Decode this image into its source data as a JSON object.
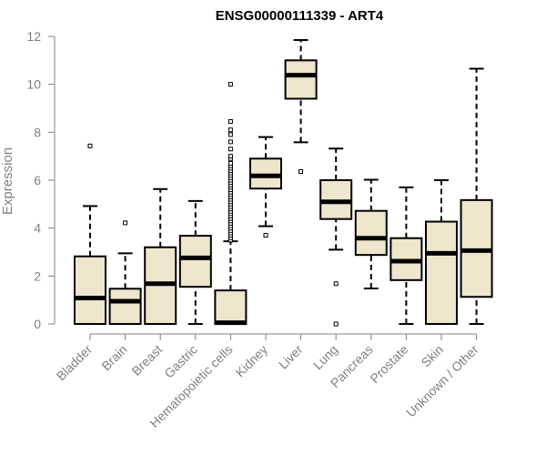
{
  "chart_data": {
    "type": "boxplot",
    "title": "ENSG00000111339 - ART4",
    "xlabel": "",
    "ylabel": "Expression",
    "ylim": [
      0,
      12
    ],
    "yticks": [
      0,
      2,
      4,
      6,
      8,
      10,
      12
    ],
    "grid": false,
    "legend": "none",
    "box_fill": "#ede6cc",
    "categories": [
      "Bladder",
      "Brain",
      "Breast",
      "Gastric",
      "Hematopoietic cells",
      "Kidney",
      "Liver",
      "Lung",
      "Pancreas",
      "Prostate",
      "Skin",
      "Unknown / Other"
    ],
    "boxes": [
      {
        "min": 0,
        "q1": 0,
        "median": 1.08,
        "q3": 2.82,
        "max": 4.92,
        "outliers": [
          7.43
        ]
      },
      {
        "min": 0,
        "q1": 0,
        "median": 0.95,
        "q3": 1.47,
        "max": 2.95,
        "outliers": [
          4.22
        ]
      },
      {
        "min": 0,
        "q1": 0,
        "median": 1.68,
        "q3": 3.2,
        "max": 5.63,
        "outliers": []
      },
      {
        "min": 0,
        "q1": 1.55,
        "median": 2.76,
        "q3": 3.68,
        "max": 5.13,
        "outliers": []
      },
      {
        "min": 0,
        "q1": 0,
        "median": 0.05,
        "q3": 1.4,
        "max": 3.45,
        "outliers": [
          3.5,
          3.6,
          3.7,
          3.8,
          3.9,
          4.0,
          4.1,
          4.2,
          4.3,
          4.4,
          4.5,
          4.6,
          4.7,
          4.8,
          4.9,
          5.0,
          5.1,
          5.2,
          5.3,
          5.4,
          5.5,
          5.6,
          5.7,
          5.8,
          5.9,
          6.0,
          6.1,
          6.2,
          6.3,
          6.4,
          6.5,
          6.6,
          6.7,
          6.9,
          7.0,
          7.3,
          7.6,
          7.9,
          8.1,
          8.45,
          10.0
        ]
      },
      {
        "min": 4.08,
        "q1": 5.65,
        "median": 6.18,
        "q3": 6.9,
        "max": 7.8,
        "outliers": [
          3.7
        ]
      },
      {
        "min": 7.58,
        "q1": 9.4,
        "median": 10.38,
        "q3": 11.0,
        "max": 11.85,
        "outliers": [
          6.36
        ]
      },
      {
        "min": 3.1,
        "q1": 4.38,
        "median": 5.1,
        "q3": 6.0,
        "max": 7.32,
        "outliers": [
          1.68,
          0.0
        ]
      },
      {
        "min": 1.48,
        "q1": 2.88,
        "median": 3.58,
        "q3": 4.72,
        "max": 6.02,
        "outliers": []
      },
      {
        "min": 0,
        "q1": 1.83,
        "median": 2.62,
        "q3": 3.58,
        "max": 5.7,
        "outliers": []
      },
      {
        "min": 0,
        "q1": 0,
        "median": 2.95,
        "q3": 4.27,
        "max": 6.0,
        "outliers": []
      },
      {
        "min": 0,
        "q1": 1.13,
        "median": 3.06,
        "q3": 5.17,
        "max": 10.65,
        "outliers": []
      }
    ]
  }
}
